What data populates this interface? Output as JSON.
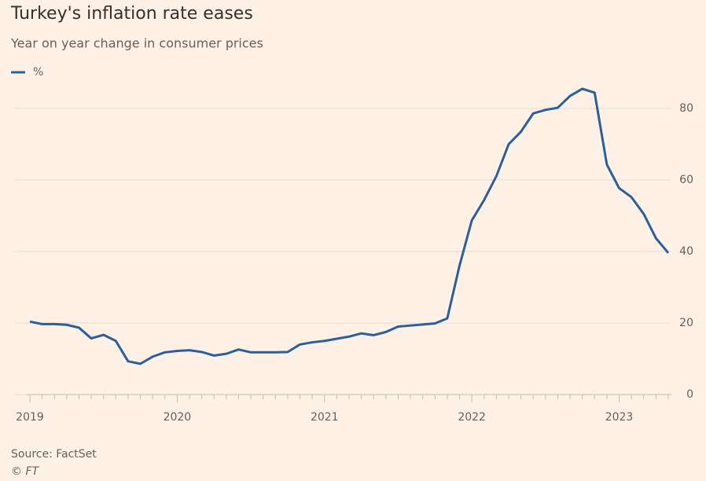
{
  "chart_data": {
    "type": "line",
    "title": "Turkey's inflation rate eases",
    "subtitle": "Year on year change in consumer prices",
    "source": "Source: FactSet",
    "credit": "© FT",
    "categories": [
      "2019",
      null,
      null,
      null,
      null,
      null,
      null,
      null,
      null,
      null,
      null,
      null,
      "2020",
      null,
      null,
      null,
      null,
      null,
      null,
      null,
      null,
      null,
      null,
      null,
      "2021",
      null,
      null,
      null,
      null,
      null,
      null,
      null,
      null,
      null,
      null,
      null,
      "2022",
      null,
      null,
      null,
      null,
      null,
      null,
      null,
      null,
      null,
      null,
      null,
      "2023",
      null,
      null,
      null,
      null
    ],
    "series": [
      {
        "name": "%",
        "color": "#2a5f9e",
        "values": [
          20.4,
          19.7,
          19.7,
          19.5,
          18.7,
          15.7,
          16.7,
          15.0,
          9.3,
          8.6,
          10.6,
          11.8,
          12.2,
          12.4,
          11.9,
          10.9,
          11.4,
          12.6,
          11.8,
          11.8,
          11.8,
          11.9,
          14.0,
          14.6,
          15.0,
          15.6,
          16.2,
          17.1,
          16.6,
          17.5,
          19.0,
          19.3,
          19.6,
          19.9,
          21.3,
          36.1,
          48.7,
          54.4,
          61.1,
          70.0,
          73.5,
          78.6,
          79.6,
          80.2,
          83.5,
          85.5,
          84.4,
          64.3,
          57.7,
          55.2,
          50.5,
          43.7,
          39.6
        ]
      }
    ],
    "ylim": [
      0,
      90
    ],
    "yticks": [
      0,
      20,
      40,
      60,
      80
    ],
    "grid": true,
    "legend": "top-left"
  }
}
